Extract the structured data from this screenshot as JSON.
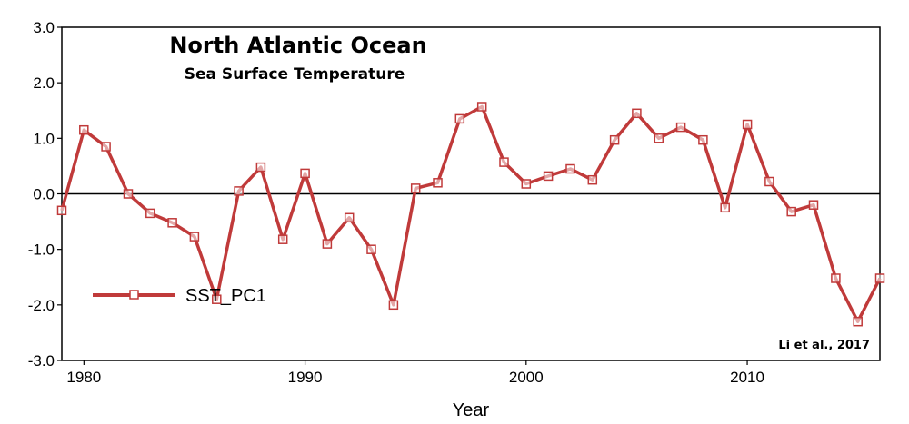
{
  "chart_data": {
    "type": "line",
    "title": "North Atlantic Ocean",
    "subtitle": "Sea Surface Temperature",
    "xlabel": "Year",
    "ylabel": "",
    "xlim": [
      1979,
      2016
    ],
    "ylim": [
      -3.0,
      3.0
    ],
    "x_ticks": [
      1980,
      1990,
      2000,
      2010
    ],
    "y_ticks": [
      3.0,
      2.0,
      1.0,
      0.0,
      -1.0,
      -2.0,
      -3.0
    ],
    "y_tick_labels": [
      "3.0",
      "2.0",
      "1.0",
      "0.0",
      "-1.0",
      "-2.0",
      "-3.0"
    ],
    "zero_line": true,
    "grid": false,
    "legend_position": "lower-left",
    "citation": "Li et al., 2017",
    "line_color": "#c03a3a",
    "series": [
      {
        "name": "SST_PC1",
        "x": [
          1979,
          1980,
          1981,
          1982,
          1983,
          1984,
          1985,
          1986,
          1987,
          1988,
          1989,
          1990,
          1991,
          1992,
          1993,
          1994,
          1995,
          1996,
          1997,
          1998,
          1999,
          2000,
          2001,
          2002,
          2003,
          2004,
          2005,
          2006,
          2007,
          2008,
          2009,
          2010,
          2011,
          2012,
          2013,
          2014,
          2015,
          2016
        ],
        "y": [
          -0.3,
          1.15,
          0.85,
          0.0,
          -0.35,
          -0.52,
          -0.77,
          -1.9,
          0.05,
          0.48,
          -0.82,
          0.37,
          -0.9,
          -0.43,
          -1.0,
          -2.0,
          0.1,
          0.2,
          1.35,
          1.57,
          0.57,
          0.18,
          0.32,
          0.45,
          0.25,
          0.97,
          1.45,
          1.0,
          1.2,
          0.97,
          -0.25,
          1.25,
          0.22,
          -0.32,
          -0.2,
          -1.52,
          -2.3,
          -1.52
        ],
        "markers": [
          1980,
          1981,
          1982,
          1984,
          1985,
          1986,
          1987,
          1988,
          1989,
          1990,
          1991,
          1992,
          1993,
          1994,
          1995,
          1996,
          1997,
          1998,
          1999,
          2000,
          2001,
          2002,
          2003,
          2004,
          2005,
          2006,
          2007,
          2008,
          2009,
          2010,
          2011,
          2012,
          2013,
          2014,
          2015,
          2016,
          1979
        ]
      }
    ]
  }
}
